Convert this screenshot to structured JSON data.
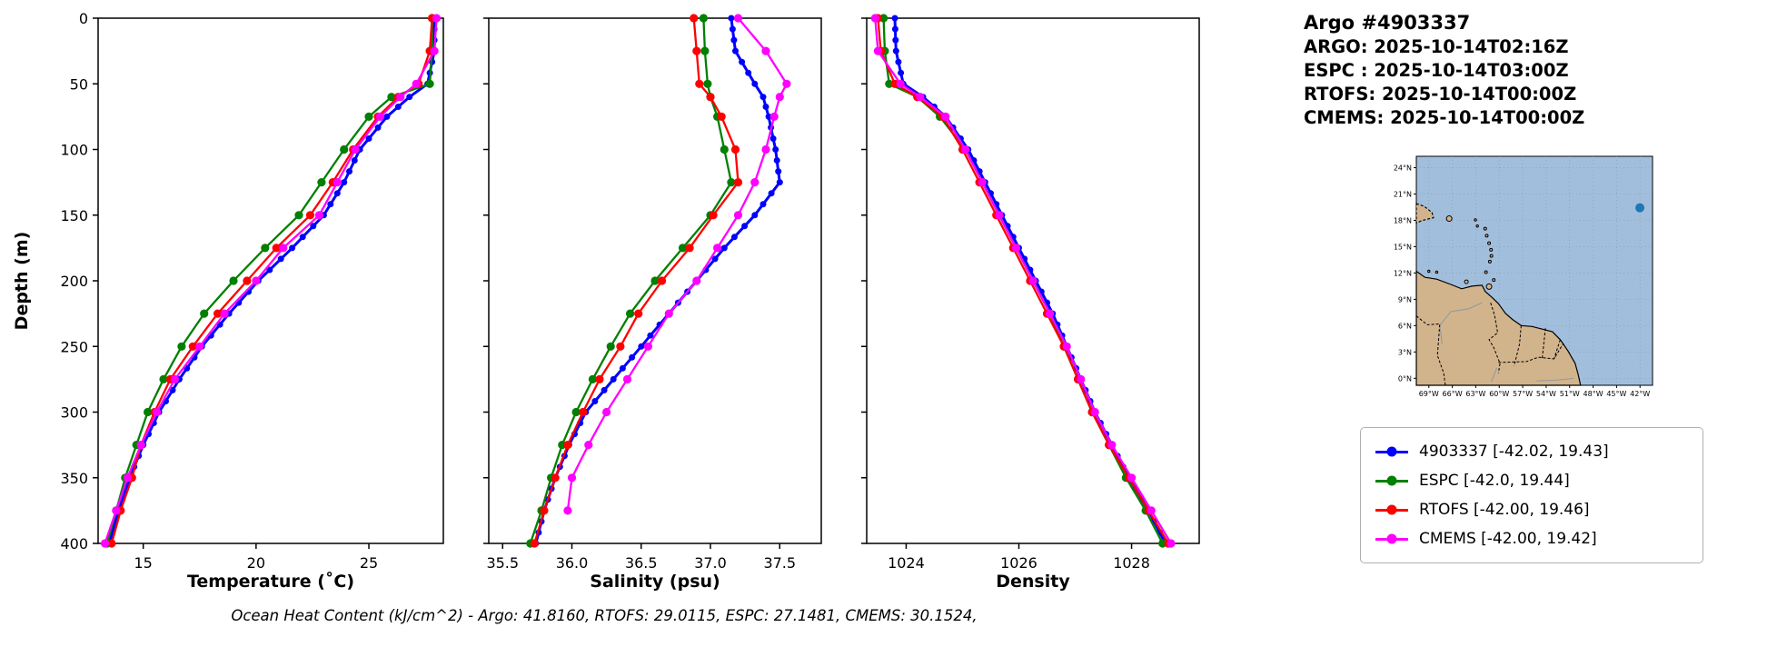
{
  "header": {
    "title": "Argo #4903337",
    "lines": [
      "ARGO: 2025-10-14T02:16Z",
      "ESPC : 2025-10-14T03:00Z",
      "RTOFS: 2025-10-14T00:00Z",
      "CMEMS: 2025-10-14T00:00Z"
    ]
  },
  "footer": "Ocean Heat Content (kJ/cm^2) - Argo: 41.8160,  RTOFS: 29.0115,  ESPC: 27.1481,  CMEMS: 30.1524,",
  "colors": {
    "argo": "#0000ff",
    "espc": "#008000",
    "rtofs": "#ff0000",
    "cmems": "#ff00ff"
  },
  "legend": [
    {
      "label": "4903337 [-42.02, 19.43]",
      "color": "#0000ff"
    },
    {
      "label": "ESPC [-42.0, 19.44]",
      "color": "#008000"
    },
    {
      "label": "RTOFS [-42.00, 19.46]",
      "color": "#ff0000"
    },
    {
      "label": "CMEMS [-42.00, 19.42]",
      "color": "#ff00ff"
    }
  ],
  "chart_data": [
    {
      "type": "line",
      "title": "",
      "xlabel": "Temperature (˚C)",
      "ylabel": "Depth (m)",
      "xlim": [
        13.0,
        28.3
      ],
      "ylim": [
        0,
        400
      ],
      "xticks": [
        15,
        20,
        25
      ],
      "xtick_labels": [
        "15",
        "20",
        "25"
      ],
      "yticks": [
        0,
        50,
        100,
        150,
        200,
        250,
        300,
        350,
        400
      ],
      "yticklabels": true,
      "grid": false,
      "depths": [
        0,
        25,
        50,
        60,
        75,
        100,
        125,
        150,
        175,
        200,
        225,
        250,
        275,
        300,
        325,
        350,
        375,
        400
      ],
      "series": [
        {
          "name": "4903337",
          "color": "#0000ff",
          "dense": true,
          "values": [
            27.9,
            27.9,
            27.6,
            26.8,
            25.8,
            24.6,
            23.9,
            23.0,
            21.6,
            20.1,
            18.8,
            17.6,
            16.6,
            15.7,
            15.0,
            14.4,
            13.9,
            13.5
          ]
        },
        {
          "name": "ESPC",
          "color": "#008000",
          "dense": false,
          "values": [
            27.8,
            27.8,
            27.7,
            26.0,
            25.0,
            23.9,
            22.9,
            21.9,
            20.4,
            19.0,
            17.7,
            16.7,
            15.9,
            15.2,
            14.7,
            14.2,
            13.8,
            13.4
          ]
        },
        {
          "name": "RTOFS",
          "color": "#ff0000",
          "dense": false,
          "values": [
            27.8,
            27.7,
            27.2,
            26.3,
            25.4,
            24.3,
            23.4,
            22.4,
            20.9,
            19.6,
            18.3,
            17.2,
            16.2,
            15.5,
            14.9,
            14.5,
            14.0,
            13.6
          ]
        },
        {
          "name": "CMEMS",
          "color": "#ff00ff",
          "dense": false,
          "values": [
            28.0,
            27.9,
            27.1,
            26.4,
            25.5,
            24.4,
            23.6,
            22.8,
            21.2,
            20.0,
            18.6,
            17.5,
            16.4,
            15.6,
            14.9,
            14.3,
            13.8,
            13.3
          ]
        }
      ]
    },
    {
      "type": "line",
      "title": "",
      "xlabel": "Salinity (psu)",
      "ylabel": "",
      "xlim": [
        35.4,
        37.8
      ],
      "ylim": [
        0,
        400
      ],
      "xticks": [
        35.5,
        36.0,
        36.5,
        37.0,
        37.5
      ],
      "xtick_labels": [
        "35.5",
        "36.0",
        "36.5",
        "37.0",
        "37.5"
      ],
      "yticks": [
        0,
        50,
        100,
        150,
        200,
        250,
        300,
        350,
        400
      ],
      "yticklabels": false,
      "grid": false,
      "depths": [
        0,
        25,
        50,
        60,
        75,
        100,
        125,
        150,
        175,
        200,
        225,
        250,
        275,
        300,
        325,
        350,
        375,
        400
      ],
      "series": [
        {
          "name": "4903337",
          "color": "#0000ff",
          "dense": true,
          "values": [
            37.15,
            37.18,
            37.32,
            37.38,
            37.42,
            37.47,
            37.5,
            37.32,
            37.1,
            36.9,
            36.7,
            36.5,
            36.3,
            36.1,
            35.98,
            35.88,
            35.8,
            35.74
          ]
        },
        {
          "name": "ESPC",
          "color": "#008000",
          "dense": false,
          "values": [
            36.95,
            36.96,
            36.98,
            37.0,
            37.05,
            37.1,
            37.15,
            37.0,
            36.8,
            36.6,
            36.42,
            36.28,
            36.15,
            36.03,
            35.93,
            35.85,
            35.78,
            35.7
          ]
        },
        {
          "name": "RTOFS",
          "color": "#ff0000",
          "dense": false,
          "values": [
            36.88,
            36.9,
            36.92,
            37.0,
            37.08,
            37.18,
            37.2,
            37.02,
            36.85,
            36.65,
            36.48,
            36.35,
            36.2,
            36.08,
            35.97,
            35.88,
            35.8,
            35.73
          ]
        },
        {
          "name": "CMEMS",
          "color": "#ff00ff",
          "dense": false,
          "values": [
            37.2,
            37.4,
            37.55,
            37.5,
            37.46,
            37.4,
            37.32,
            37.2,
            37.05,
            36.9,
            36.7,
            36.55,
            36.4,
            36.25,
            36.12,
            36.0,
            35.97,
            null
          ]
        }
      ]
    },
    {
      "type": "line",
      "title": "",
      "xlabel": "Density",
      "ylabel": "",
      "xlim": [
        1023.3,
        1029.2
      ],
      "ylim": [
        0,
        400
      ],
      "xticks": [
        1024,
        1026,
        1028
      ],
      "xtick_labels": [
        "1024",
        "1026",
        "1028"
      ],
      "yticks": [
        0,
        50,
        100,
        150,
        200,
        250,
        300,
        350,
        400
      ],
      "yticklabels": false,
      "grid": false,
      "depths": [
        0,
        25,
        50,
        60,
        75,
        100,
        125,
        150,
        175,
        200,
        225,
        250,
        275,
        300,
        325,
        350,
        375,
        400
      ],
      "series": [
        {
          "name": "4903337",
          "color": "#0000ff",
          "dense": true,
          "values": [
            1023.8,
            1023.82,
            1023.95,
            1024.3,
            1024.7,
            1025.1,
            1025.4,
            1025.7,
            1026.0,
            1026.3,
            1026.6,
            1026.85,
            1027.1,
            1027.35,
            1027.65,
            1027.95,
            1028.3,
            1028.6
          ]
        },
        {
          "name": "ESPC",
          "color": "#008000",
          "dense": false,
          "values": [
            1023.6,
            1023.62,
            1023.7,
            1024.2,
            1024.6,
            1025.05,
            1025.35,
            1025.65,
            1025.95,
            1026.25,
            1026.55,
            1026.8,
            1027.05,
            1027.3,
            1027.6,
            1027.9,
            1028.25,
            1028.55
          ]
        },
        {
          "name": "RTOFS",
          "color": "#ff0000",
          "dense": false,
          "values": [
            1023.5,
            1023.55,
            1023.8,
            1024.2,
            1024.65,
            1025.0,
            1025.3,
            1025.6,
            1025.9,
            1026.2,
            1026.5,
            1026.8,
            1027.05,
            1027.3,
            1027.6,
            1027.95,
            1028.3,
            1028.65
          ]
        },
        {
          "name": "CMEMS",
          "color": "#ff00ff",
          "dense": false,
          "values": [
            1023.45,
            1023.5,
            1023.9,
            1024.25,
            1024.7,
            1025.05,
            1025.35,
            1025.65,
            1025.95,
            1026.25,
            1026.55,
            1026.85,
            1027.1,
            1027.35,
            1027.65,
            1028.0,
            1028.35,
            1028.7
          ]
        }
      ]
    }
  ],
  "map": {
    "ocean_color": "#a2bedd",
    "land_color": "#d2b48c",
    "lon_range": [
      -70.6,
      -40.4
    ],
    "lat_range": [
      -0.8,
      25.3
    ],
    "lat_tick_values": [
      0,
      3,
      6,
      9,
      12,
      15,
      18,
      21,
      24
    ],
    "lat_tick_labels": [
      "0°N",
      "3°N",
      "6°N",
      "9°N",
      "12°N",
      "15°N",
      "18°N",
      "21°N",
      "24°N"
    ],
    "lon_tick_values": [
      -69,
      -66,
      -63,
      -60,
      -57,
      -54,
      -51,
      -48,
      -45,
      -42
    ],
    "lon_tick_labels": [
      "69°W",
      "66°W",
      "63°W",
      "60°W",
      "57°W",
      "54°W",
      "51°W",
      "48°W",
      "45°W",
      "42°W"
    ],
    "marker": {
      "lon": -42.02,
      "lat": 19.43,
      "color": "#1f77b4"
    },
    "land": [
      [
        -70.6,
        12.2
      ],
      [
        -69.5,
        11.5
      ],
      [
        -68.0,
        11.3
      ],
      [
        -66.2,
        10.7
      ],
      [
        -64.8,
        10.2
      ],
      [
        -63.5,
        10.5
      ],
      [
        -62.2,
        10.6
      ],
      [
        -61.8,
        9.9
      ],
      [
        -60.9,
        9.2
      ],
      [
        -60.1,
        8.5
      ],
      [
        -59.2,
        7.4
      ],
      [
        -58.3,
        6.7
      ],
      [
        -57.2,
        6.0
      ],
      [
        -55.8,
        5.9
      ],
      [
        -54.5,
        5.6
      ],
      [
        -53.2,
        5.3
      ],
      [
        -52.2,
        4.4
      ],
      [
        -51.2,
        3.1
      ],
      [
        -50.3,
        1.7
      ],
      [
        -49.9,
        0.4
      ],
      [
        -49.6,
        -0.8
      ],
      [
        -70.6,
        -0.8
      ]
    ],
    "hispaniola": [
      [
        -70.6,
        19.9
      ],
      [
        -69.6,
        19.6
      ],
      [
        -68.6,
        18.9
      ],
      [
        -68.4,
        18.3
      ],
      [
        -69.8,
        18.0
      ],
      [
        -70.6,
        17.7
      ]
    ],
    "islands": [
      [
        -61.3,
        10.45,
        3
      ],
      [
        -60.7,
        11.2,
        1.5
      ],
      [
        -64.2,
        11.0,
        2
      ],
      [
        -66.4,
        18.2,
        3
      ],
      [
        -61.7,
        12.1,
        1.5
      ],
      [
        -61.2,
        13.3,
        1.5
      ],
      [
        -61.0,
        13.95,
        1.5
      ],
      [
        -61.05,
        14.65,
        1.5
      ],
      [
        -61.3,
        15.4,
        1.5
      ],
      [
        -61.6,
        16.25,
        1.5
      ],
      [
        -61.8,
        17.05,
        1.5
      ],
      [
        -62.8,
        17.35,
        1.2
      ],
      [
        -63.05,
        18.05,
        1.2
      ],
      [
        -68.0,
        12.1,
        1.2
      ],
      [
        -69.0,
        12.2,
        1.2
      ]
    ],
    "borders": [
      [
        [
          -70.6,
          7.1
        ],
        [
          -69.2,
          6.1
        ],
        [
          -67.6,
          6.2
        ],
        [
          -67.9,
          2.6
        ],
        [
          -67.1,
          0.6
        ],
        [
          -66.9,
          -0.8
        ]
      ],
      [
        [
          -61.1,
          8.6
        ],
        [
          -60.6,
          7.2
        ],
        [
          -60.2,
          5.2
        ],
        [
          -61.3,
          4.4
        ],
        [
          -60.7,
          3.5
        ],
        [
          -59.9,
          1.7
        ],
        [
          -60.1,
          0.6
        ]
      ],
      [
        [
          -57.2,
          6.0
        ],
        [
          -57.4,
          3.9
        ],
        [
          -58.1,
          1.4
        ]
      ],
      [
        [
          -54.1,
          5.7
        ],
        [
          -54.5,
          2.3
        ]
      ],
      [
        [
          -52.2,
          4.4
        ],
        [
          -53.0,
          2.2
        ]
      ],
      [
        [
          -60.1,
          1.8
        ],
        [
          -56.5,
          1.9
        ],
        [
          -55.0,
          2.4
        ],
        [
          -53.0,
          2.2
        ],
        [
          -51.8,
          4.0
        ]
      ]
    ],
    "rivers": [
      [
        [
          -62.2,
          8.6
        ],
        [
          -64.0,
          7.9
        ],
        [
          -66.2,
          7.6
        ],
        [
          -67.6,
          6.0
        ],
        [
          -67.3,
          3.9
        ]
      ],
      [
        [
          -55.2,
          -0.3
        ],
        [
          -52.5,
          -0.2
        ],
        [
          -50.5,
          0.0
        ]
      ],
      [
        [
          -60.3,
          1.2
        ],
        [
          -61.0,
          -0.4
        ]
      ]
    ]
  }
}
